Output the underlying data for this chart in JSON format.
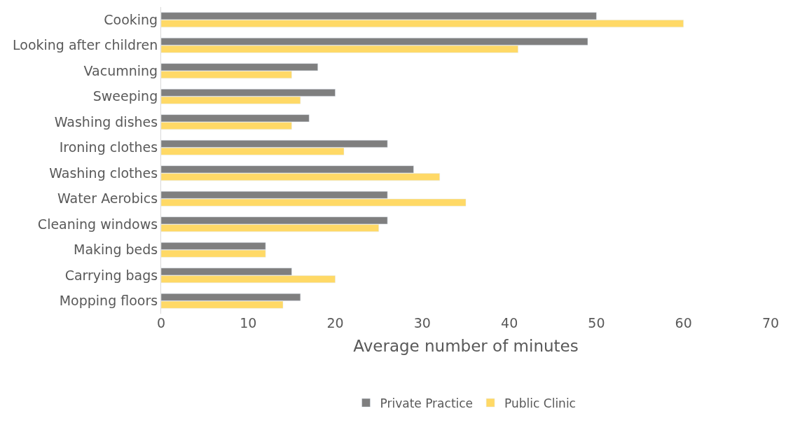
{
  "chart_data": {
    "type": "bar",
    "orientation": "horizontal",
    "xlabel": "Average number of minutes",
    "categories": [
      "Cooking",
      "Looking after children",
      "Vacumning",
      "Sweeping",
      "Washing dishes",
      "Ironing clothes",
      "Washing clothes",
      "Water Aerobics",
      "Cleaning windows",
      "Making beds",
      "Carrying bags",
      "Mopping floors"
    ],
    "series": [
      {
        "name": "Private Practice",
        "color": "#7f7f7f",
        "values": [
          50,
          49,
          18,
          20,
          17,
          26,
          29,
          26,
          26,
          12,
          15,
          16
        ]
      },
      {
        "name": "Public Clinic",
        "color": "#ffd966",
        "values": [
          60,
          41,
          15,
          16,
          15,
          21,
          32,
          35,
          25,
          12,
          20,
          14
        ]
      }
    ],
    "xlim": [
      0,
      70
    ],
    "xticks": [
      0,
      10,
      20,
      30,
      40,
      50,
      60,
      70
    ],
    "grid": false,
    "legend": "bottom"
  }
}
